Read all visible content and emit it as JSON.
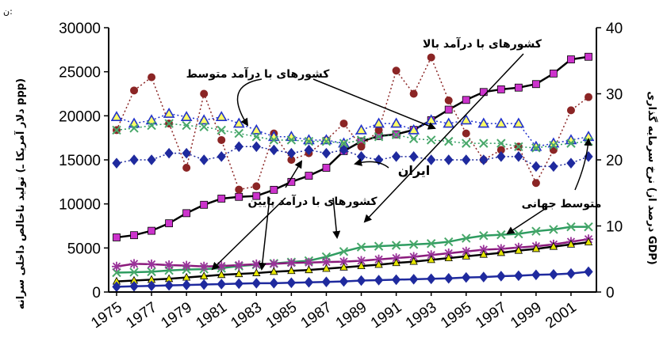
{
  "chart_data": {
    "type": "line",
    "x": [
      1975,
      1976,
      1977,
      1978,
      1979,
      1980,
      1981,
      1982,
      1983,
      1984,
      1985,
      1986,
      1987,
      1988,
      1989,
      1990,
      1991,
      1992,
      1993,
      1994,
      1995,
      1996,
      1997,
      1998,
      1999,
      2000,
      2001,
      2002
    ],
    "x_tick_labels": [
      "1975",
      "1977",
      "1979",
      "1981",
      "1983",
      "1985",
      "1987",
      "1989",
      "1991",
      "1993",
      "1995",
      "1997",
      "1999",
      "2001"
    ],
    "y_left": {
      "label": "تولید ناخالص داخلی سرانه (دلار آمریکا ـ ppp)",
      "ylim": [
        0,
        30000
      ],
      "ticks": [
        "0",
        "5000",
        "10000",
        "15000",
        "20000",
        "25000",
        "30000"
      ]
    },
    "y_right": {
      "label": "نرخ سرمایه گذاری (درصد از GDP)",
      "ylim": [
        0,
        40
      ],
      "ticks": [
        "0",
        "10",
        "20",
        "30",
        "40"
      ]
    },
    "corner_mark": "ن:",
    "grid": false,
    "series": [
      {
        "axis": "left",
        "style": "square-line",
        "color": "#000000",
        "marker_color": "#cc33cc",
        "values": [
          6200,
          6450,
          6950,
          7800,
          8950,
          9900,
          10600,
          10800,
          10900,
          11600,
          12500,
          13200,
          14100,
          16000,
          17100,
          17700,
          17900,
          18400,
          19500,
          20700,
          21800,
          22700,
          23000,
          23200,
          23600,
          24800,
          26400,
          26700
        ]
      },
      {
        "axis": "left",
        "style": "x-line",
        "color": "#2e9c60",
        "marker_color": "#49a86a",
        "values": [
          2200,
          2250,
          2300,
          2450,
          2550,
          2600,
          2700,
          2950,
          3100,
          3250,
          3400,
          3550,
          4000,
          4600,
          5100,
          5200,
          5300,
          5400,
          5500,
          5700,
          6100,
          6400,
          6500,
          6600,
          6900,
          7100,
          7400,
          7400
        ]
      },
      {
        "axis": "left",
        "style": "star-line",
        "color": "#8a1a7a",
        "marker_color": "#993399",
        "values": [
          2900,
          3200,
          3150,
          3050,
          3000,
          2900,
          2950,
          3050,
          3150,
          3200,
          3300,
          3350,
          3400,
          3450,
          3550,
          3700,
          3850,
          4000,
          4200,
          4400,
          4600,
          4800,
          4900,
          5050,
          5200,
          5400,
          5700,
          6000
        ]
      },
      {
        "axis": "left",
        "style": "triangle-line",
        "color": "#000000",
        "marker_color": "#e6e600",
        "values": [
          1200,
          1300,
          1400,
          1500,
          1650,
          1800,
          1950,
          2050,
          2150,
          2300,
          2400,
          2500,
          2650,
          2800,
          2950,
          3100,
          3300,
          3450,
          3650,
          3850,
          4050,
          4250,
          4450,
          4700,
          4900,
          5150,
          5400,
          5650
        ]
      },
      {
        "axis": "left",
        "style": "diamond-line",
        "color": "#1f2a9e",
        "marker_color": "#1f2a9e",
        "values": [
          600,
          650,
          700,
          750,
          800,
          850,
          900,
          950,
          1000,
          1000,
          1050,
          1100,
          1150,
          1200,
          1300,
          1350,
          1400,
          1450,
          1500,
          1550,
          1650,
          1700,
          1800,
          1850,
          1950,
          2000,
          2100,
          2300
        ]
      },
      {
        "axis": "right",
        "style": "circle-dotted",
        "color": "#8b2525",
        "marker_color": "#8b2525",
        "values": [
          24.5,
          30.5,
          32.5,
          25.5,
          18.8,
          30,
          23,
          15.5,
          16,
          24,
          20,
          21,
          23,
          25.5,
          22,
          24.5,
          33.5,
          30,
          35.5,
          29,
          24,
          20,
          21.5,
          22,
          16.5,
          21.5,
          27.5,
          29.5
        ]
      },
      {
        "axis": "right",
        "style": "triangle-open-dotted",
        "color": "#2233cc",
        "marker_color": "#2233cc",
        "values": [
          26.5,
          25.5,
          26,
          27,
          26.5,
          26,
          26.5,
          25.5,
          24.5,
          23.5,
          23.5,
          23,
          23,
          22.5,
          24.5,
          25.5,
          25.5,
          24.5,
          26,
          25.5,
          26,
          25.5,
          25.5,
          25.5,
          22,
          22.5,
          23,
          23.5
        ]
      },
      {
        "axis": "right",
        "style": "x-dotted",
        "color": "#2e9c60",
        "marker_color": "#49a86a",
        "values": [
          24.5,
          24.8,
          25.2,
          25.5,
          25.2,
          25,
          24.5,
          24,
          23.5,
          23,
          23,
          22.8,
          22.8,
          22.5,
          23,
          23.5,
          23.8,
          23.2,
          23,
          22.8,
          22.5,
          22.5,
          22.5,
          22,
          21.8,
          22.2,
          22.5,
          22.8
        ]
      },
      {
        "axis": "right",
        "style": "diamond-dotted",
        "color": "#1f2a9e",
        "marker_color": "#1f2a9e",
        "values": [
          19.5,
          20,
          20,
          21,
          21,
          20,
          20.5,
          22,
          22,
          21.5,
          21,
          21.5,
          21,
          21.5,
          20.5,
          20,
          20.5,
          20.5,
          20,
          20,
          20,
          20,
          20.5,
          20.5,
          19,
          19,
          19.5,
          20.5
        ]
      }
    ],
    "annotations": [
      {
        "id": "high-income",
        "text": "کشورهای با درآمد بالا"
      },
      {
        "id": "middle-income",
        "text": "کشورهای با درآمد متوسط"
      },
      {
        "id": "iran",
        "text": "ایران"
      },
      {
        "id": "low-income",
        "text": "کشورهای با درآمد پایین"
      },
      {
        "id": "world-average",
        "text": "متوسط جهانی"
      }
    ]
  }
}
